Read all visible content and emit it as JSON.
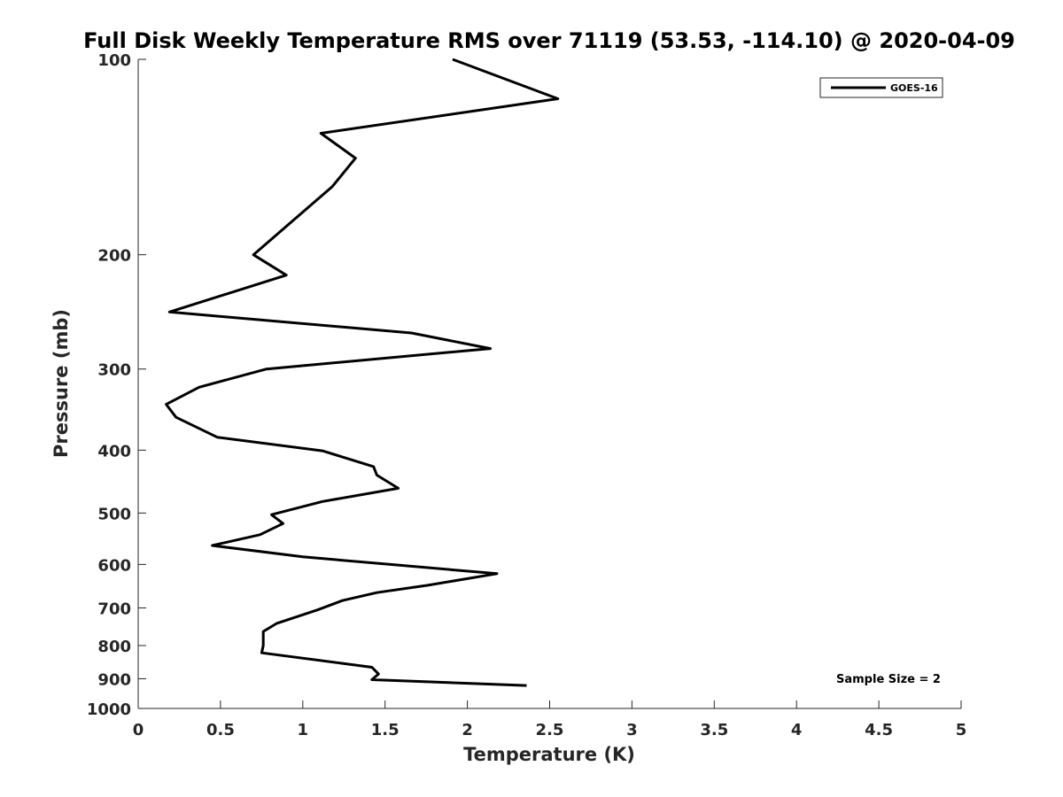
{
  "chart_data": {
    "type": "line",
    "title": "Full Disk Weekly Temperature RMS over 71119 (53.53, -114.10) @ 2020-04-09",
    "xlabel": "Temperature (K)",
    "ylabel": "Pressure (mb)",
    "xlim": [
      0,
      5
    ],
    "ylim": [
      1000,
      100
    ],
    "y_scale": "log",
    "y_reversed": true,
    "x_ticks": [
      "0",
      "0.5",
      "1",
      "1.5",
      "2",
      "2.5",
      "3",
      "3.5",
      "4",
      "4.5",
      "5"
    ],
    "y_ticks": [
      "100",
      "200",
      "300",
      "400",
      "500",
      "600",
      "700",
      "800",
      "900",
      "1000"
    ],
    "grid": false,
    "legend": {
      "position": "top-right",
      "entries": [
        "GOES-16"
      ]
    },
    "annotation": "Sample Size = 2",
    "series": [
      {
        "name": "GOES-16",
        "color": "#000000",
        "points": [
          [
            1.91,
            100
          ],
          [
            2.55,
            115
          ],
          [
            1.11,
            130
          ],
          [
            1.32,
            142
          ],
          [
            1.18,
            157
          ],
          [
            0.7,
            200
          ],
          [
            0.9,
            215
          ],
          [
            0.19,
            245
          ],
          [
            1.66,
            264
          ],
          [
            2.14,
            279
          ],
          [
            0.78,
            300
          ],
          [
            0.37,
            320
          ],
          [
            0.17,
            340
          ],
          [
            0.23,
            356
          ],
          [
            0.48,
            382
          ],
          [
            1.12,
            401
          ],
          [
            1.43,
            424
          ],
          [
            1.45,
            437
          ],
          [
            1.58,
            458
          ],
          [
            1.12,
            480
          ],
          [
            0.81,
            503
          ],
          [
            0.88,
            519
          ],
          [
            0.74,
            540
          ],
          [
            0.45,
            561
          ],
          [
            1.0,
            584
          ],
          [
            2.18,
            620
          ],
          [
            1.76,
            646
          ],
          [
            1.45,
            663
          ],
          [
            1.24,
            682
          ],
          [
            1.09,
            705
          ],
          [
            0.84,
            740
          ],
          [
            0.76,
            761
          ],
          [
            0.76,
            800
          ],
          [
            0.75,
            821
          ],
          [
            1.42,
            864
          ],
          [
            1.46,
            885
          ],
          [
            1.42,
            903
          ],
          [
            2.36,
            922
          ]
        ]
      }
    ]
  }
}
